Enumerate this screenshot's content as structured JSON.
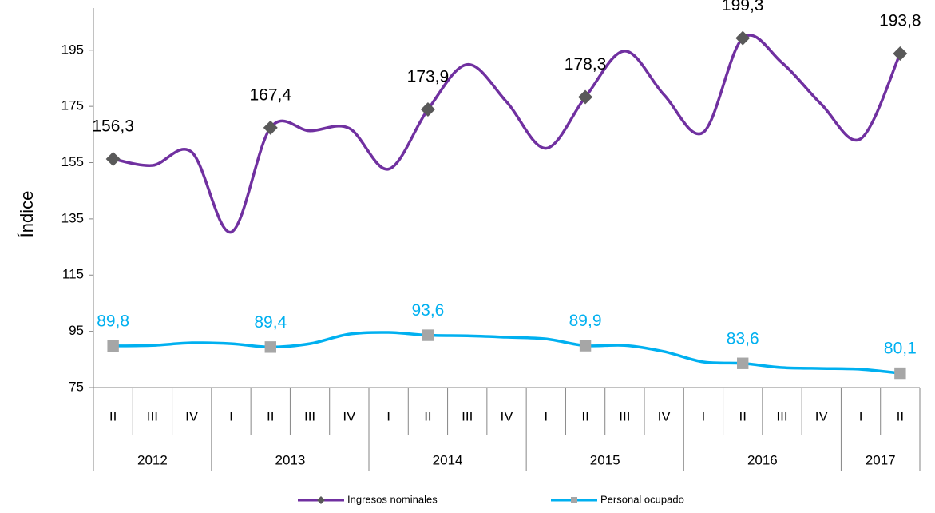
{
  "chart_data": {
    "type": "line",
    "y_label": "Índice",
    "categories": [
      "II",
      "III",
      "IV",
      "I",
      "II",
      "III",
      "IV",
      "I",
      "II",
      "III",
      "IV",
      "I",
      "II",
      "III",
      "IV",
      "I",
      "II",
      "III",
      "IV",
      "I",
      "II"
    ],
    "groups": [
      {
        "label": "2012",
        "count": 3
      },
      {
        "label": "2013",
        "count": 4
      },
      {
        "label": "2014",
        "count": 4
      },
      {
        "label": "2015",
        "count": 4
      },
      {
        "label": "2016",
        "count": 4
      },
      {
        "label": "2017",
        "count": 2
      }
    ],
    "series": [
      {
        "name": "Ingresos nominales",
        "color": "#7030a0",
        "marker": "diamond",
        "marker_color": "#595959",
        "label_color": "#000000",
        "values": [
          156.3,
          154,
          158.7,
          130.3,
          167.4,
          166.3,
          167.2,
          152.7,
          173.9,
          189.9,
          176.6,
          160.1,
          178.3,
          194.7,
          179.1,
          165.8,
          199.3,
          190.5,
          175.7,
          163.5,
          193.8
        ],
        "value_labels": [
          "156,3",
          null,
          null,
          null,
          "167,4",
          null,
          null,
          null,
          "173,9",
          null,
          null,
          null,
          "178,3",
          null,
          null,
          null,
          "199,3",
          null,
          null,
          null,
          "193,8"
        ]
      },
      {
        "name": "Personal ocupado",
        "color": "#00b0f0",
        "marker": "square",
        "marker_color": "#a6a6a6",
        "label_color": "#00b0f0",
        "values": [
          89.8,
          90,
          90.9,
          90.6,
          89.4,
          90.6,
          94,
          94.6,
          93.6,
          93.4,
          92.9,
          92.3,
          89.9,
          90,
          87.8,
          84.1,
          83.6,
          82.1,
          81.8,
          81.5,
          80.1
        ],
        "value_labels": [
          "89,8",
          null,
          null,
          null,
          "89,4",
          null,
          null,
          null,
          "93,6",
          null,
          null,
          null,
          "89,9",
          null,
          null,
          null,
          "83,6",
          null,
          null,
          null,
          "80,1"
        ]
      }
    ],
    "ylim": [
      75,
      210
    ],
    "yticks": [
      75,
      95,
      115,
      135,
      155,
      175,
      195
    ],
    "legend": "bottom"
  }
}
